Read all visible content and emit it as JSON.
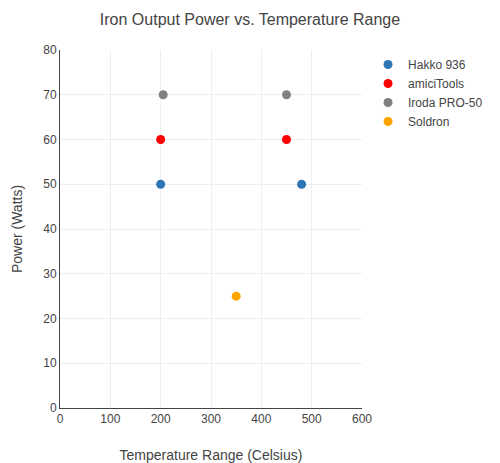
{
  "chart_data": {
    "type": "scatter",
    "title": "Iron Output Power vs. Temperature Range",
    "x_label": "Temperature Range (Celsius)",
    "y_label": "Power (Watts)",
    "xlim": [
      0,
      600
    ],
    "ylim": [
      0,
      80
    ],
    "xticks": [
      0,
      100,
      200,
      300,
      400,
      500,
      600
    ],
    "yticks": [
      0,
      10,
      20,
      30,
      40,
      50,
      60,
      70,
      80
    ],
    "grid": true,
    "series": [
      {
        "name": "Hakko 936",
        "color": "#2E75B6",
        "x": [
          200,
          480
        ],
        "values": [
          50,
          50
        ]
      },
      {
        "name": "amiciTools",
        "color": "#FF0000",
        "x": [
          200,
          450
        ],
        "values": [
          60,
          60
        ]
      },
      {
        "name": "Iroda PRO-50",
        "color": "#808080",
        "x": [
          205,
          450
        ],
        "values": [
          70,
          70
        ]
      },
      {
        "name": "Soldron",
        "color": "#FFA500",
        "x": [
          350
        ],
        "values": [
          25
        ]
      }
    ]
  }
}
